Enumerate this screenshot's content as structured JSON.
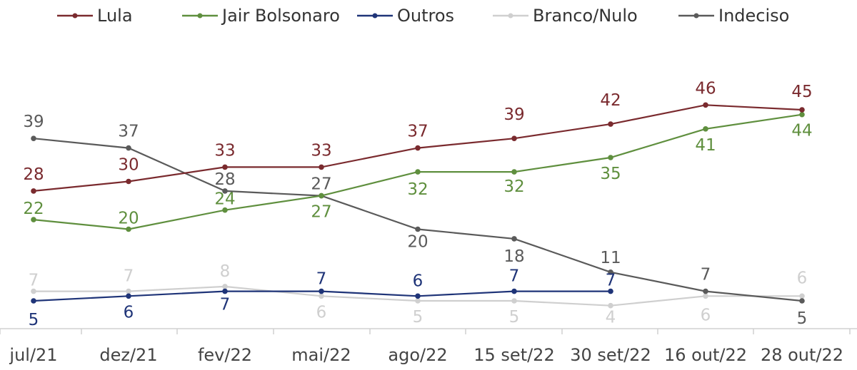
{
  "chart_data": {
    "type": "line",
    "title": "",
    "xlabel": "",
    "ylabel": "",
    "categories": [
      "jul/21",
      "dez/21",
      "fev/22",
      "mai/22",
      "ago/22",
      "15 set/22",
      "30 set/22",
      "16 out/22",
      "28 out/22"
    ],
    "legend_position": "top",
    "grid": false,
    "series": [
      {
        "name": "Lula",
        "color": "#7a2a2e",
        "values": [
          28,
          30,
          33,
          33,
          37,
          39,
          42,
          46,
          45
        ],
        "labels": [
          "28",
          "30",
          "33",
          "33",
          "37",
          "39",
          "42",
          "46",
          "45"
        ]
      },
      {
        "name": "Jair Bolsonaro",
        "color": "#5f8f3e",
        "values": [
          22,
          20,
          24,
          27,
          32,
          32,
          35,
          41,
          44
        ],
        "labels": [
          "22",
          "20",
          "24",
          "27",
          "32",
          "32",
          "35",
          "41",
          "44"
        ]
      },
      {
        "name": "Outros",
        "color": "#1f3478",
        "values": [
          5,
          6,
          7,
          7,
          6,
          7,
          7,
          null,
          null
        ],
        "labels": [
          "5",
          "6",
          "7",
          "7",
          "6",
          "7",
          "7",
          "",
          ""
        ]
      },
      {
        "name": "Branco/Nulo",
        "color": "#cfcfcf",
        "values": [
          7,
          7,
          8,
          6,
          5,
          5,
          4,
          6,
          6
        ],
        "labels": [
          "7",
          "7",
          "8",
          "6",
          "5",
          "5",
          "4",
          "6",
          "6"
        ]
      },
      {
        "name": "Indeciso",
        "color": "#5a5a5a",
        "values": [
          39,
          37,
          28,
          27,
          20,
          18,
          11,
          7,
          5
        ],
        "labels": [
          "39",
          "37",
          "28",
          "27",
          "20",
          "18",
          "11",
          "7",
          "5"
        ]
      }
    ]
  }
}
